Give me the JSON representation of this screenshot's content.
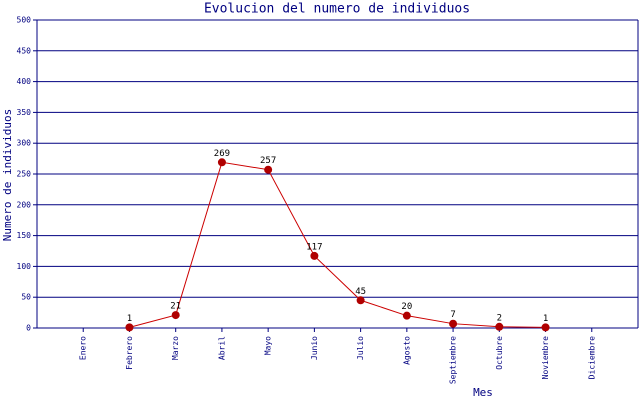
{
  "chart_data": {
    "type": "line",
    "title": "Evolucion del numero de individuos",
    "x_label": "Mes",
    "y_label": "Numero de individuos",
    "categories": [
      "Enero",
      "Febrero",
      "Marzo",
      "Abril",
      "Mayo",
      "Junio",
      "Julio",
      "Agosto",
      "Septiembre",
      "Octubre",
      "Noviembre",
      "Diciembre"
    ],
    "values": [
      null,
      1,
      21,
      269,
      257,
      117,
      45,
      20,
      7,
      2,
      1,
      null
    ],
    "color": "#cc0000",
    "marker_color": "#b00000",
    "ylim": [
      0,
      500
    ],
    "yticks": [
      0,
      50,
      100,
      150,
      200,
      250,
      300,
      350,
      400,
      450,
      500
    ],
    "grid": true
  }
}
